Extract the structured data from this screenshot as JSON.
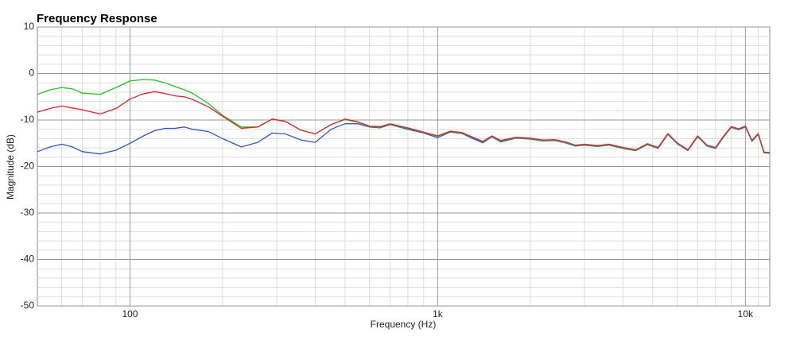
{
  "chart_data": {
    "type": "line",
    "title": "Frequency Response",
    "x_label": "Frequency (Hz)",
    "y_label": "Magnitude (dB)",
    "x_scale": "log",
    "grid": true,
    "xlim": [
      50,
      12000
    ],
    "ylim": [
      -50,
      10
    ],
    "xticks": [
      {
        "value": 100,
        "label": "100"
      },
      {
        "value": 1000,
        "label": "1k"
      },
      {
        "value": 10000,
        "label": "10k"
      }
    ],
    "yticks": [
      -50,
      -40,
      -30,
      -20,
      -10,
      0,
      10
    ],
    "x_minor_ticks": [
      60,
      70,
      80,
      90,
      200,
      300,
      400,
      500,
      600,
      700,
      800,
      900,
      2000,
      3000,
      4000,
      5000,
      6000,
      7000,
      8000,
      9000,
      11000
    ],
    "y_minor_ticks": [
      -48,
      -46,
      -44,
      -42,
      -38,
      -36,
      -34,
      -32,
      -28,
      -26,
      -24,
      -22,
      -18,
      -16,
      -14,
      -12,
      -8,
      -6,
      -4,
      -2,
      2,
      4,
      6,
      8
    ],
    "x": [
      50,
      55,
      60,
      65,
      70,
      80,
      90,
      100,
      110,
      120,
      130,
      140,
      150,
      160,
      180,
      200,
      230,
      260,
      290,
      320,
      360,
      400,
      450,
      500,
      550,
      600,
      650,
      700,
      800,
      900,
      1000,
      1100,
      1200,
      1300,
      1400,
      1500,
      1600,
      1800,
      2000,
      2200,
      2400,
      2600,
      2800,
      3000,
      3300,
      3600,
      4000,
      4400,
      4800,
      5200,
      5600,
      6000,
      6500,
      7000,
      7500,
      8000,
      8500,
      9000,
      9500,
      10000,
      10500,
      11000,
      11500,
      12000
    ],
    "series": [
      {
        "color": "#3456c8",
        "values": [
          -16.8,
          -15.8,
          -15.2,
          -15.8,
          -16.8,
          -17.3,
          -16.5,
          -15,
          -13.5,
          -12.3,
          -11.8,
          -11.8,
          -11.5,
          -12,
          -12.5,
          -14,
          -15.8,
          -14.8,
          -12.8,
          -13,
          -14.3,
          -14.8,
          -12,
          -10.8,
          -10.8,
          -11.5,
          -11.7,
          -11,
          -12,
          -12.8,
          -13.8,
          -12.6,
          -12.9,
          -14,
          -14.9,
          -13.6,
          -14.7,
          -13.9,
          -14.1,
          -14.5,
          -14.4,
          -14.9,
          -15.6,
          -15.4,
          -15.7,
          -15.4,
          -16.1,
          -16.6,
          -15.3,
          -16.1,
          -13.1,
          -15.1,
          -16.6,
          -13.6,
          -15.6,
          -16.1,
          -13.6,
          -11.6,
          -12.1,
          -11.5,
          -14.6,
          -13.1,
          -17.1,
          -17.1
        ]
      },
      {
        "color": "#22c322",
        "values": [
          -4.5,
          -3.5,
          -3,
          -3.3,
          -4.2,
          -4.5,
          -3,
          -1.6,
          -1.3,
          -1.4,
          -2,
          -2.8,
          -3.5,
          -4.3,
          -6.5,
          -9,
          -11.5,
          -11.5,
          -9.8,
          -10.3,
          -12.2,
          -13,
          -11,
          -9.9,
          -10.5,
          -11.4,
          -11.5,
          -10.9,
          -11.8,
          -12.7,
          -13.5,
          -12.5,
          -12.8,
          -13.8,
          -14.7,
          -13.5,
          -14.5,
          -13.8,
          -14,
          -14.4,
          -14.3,
          -14.8,
          -15.5,
          -15.3,
          -15.6,
          -15.3,
          -16,
          -16.5,
          -15.2,
          -16,
          -13,
          -15,
          -16.5,
          -13.5,
          -15.5,
          -16,
          -13.5,
          -11.5,
          -12,
          -11.4,
          -14.5,
          -13,
          -17,
          -17.2
        ]
      },
      {
        "color": "#e3242b",
        "values": [
          -8.3,
          -7.5,
          -7,
          -7.4,
          -7.8,
          -8.7,
          -7.5,
          -5.5,
          -4.4,
          -3.9,
          -4.3,
          -4.8,
          -5,
          -5.6,
          -7.2,
          -9.2,
          -11.8,
          -11.5,
          -9.8,
          -10.3,
          -12.2,
          -13,
          -11,
          -9.8,
          -10.4,
          -11.3,
          -11.4,
          -10.8,
          -11.7,
          -12.6,
          -13.4,
          -12.4,
          -12.7,
          -13.7,
          -14.6,
          -13.4,
          -14.4,
          -13.7,
          -13.9,
          -14.3,
          -14.2,
          -14.7,
          -15.4,
          -15.2,
          -15.5,
          -15.2,
          -15.9,
          -16.4,
          -15.1,
          -15.9,
          -12.9,
          -14.9,
          -16.4,
          -13.4,
          -15.4,
          -15.9,
          -13.4,
          -11.4,
          -11.9,
          -11.3,
          -14.4,
          -12.9,
          -16.9,
          -17
        ]
      }
    ]
  }
}
